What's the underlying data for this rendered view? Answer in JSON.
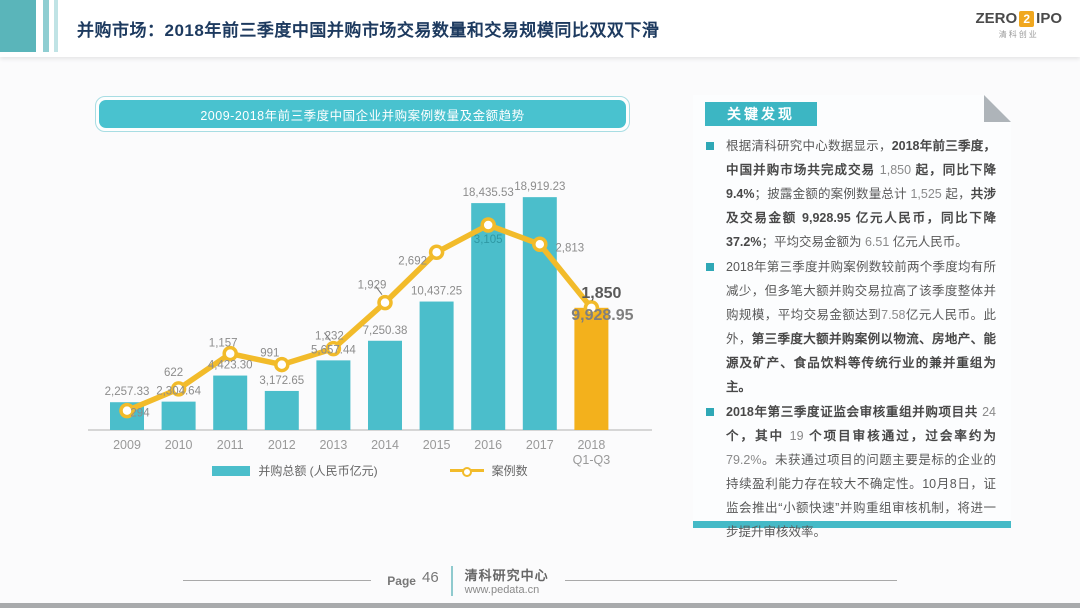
{
  "header": {
    "title": "并购市场：2018年前三季度中国并购市场交易数量和交易规模同比双双下滑",
    "logo": {
      "part1": "ZERO",
      "part2": "2",
      "part3": "IPO",
      "subtitle": "清科创业"
    }
  },
  "chart_data": {
    "type": "combo",
    "title": "2009-2018年前三季度中国企业并购案例数量及金额趋势",
    "categories": [
      "2009",
      "2010",
      "2011",
      "2012",
      "2013",
      "2014",
      "2015",
      "2016",
      "2017",
      "2018"
    ],
    "last_category_sublabel": "Q1-Q3",
    "series": [
      {
        "name": "并购总额 (人民币亿元)",
        "type": "bar",
        "values": [
          2257.33,
          2304.64,
          4423.3,
          3172.65,
          5657.44,
          7250.38,
          10437.25,
          18435.53,
          18919.23,
          9928.95
        ],
        "labels": [
          "2,257.33",
          "2,304.64",
          "4,423.30",
          "3,172.65",
          "5,657.44",
          "7,250.38",
          "10,437.25",
          "18,435.53",
          "18,919.23",
          "9,928.95"
        ]
      },
      {
        "name": "案例数",
        "type": "line",
        "values": [
          294,
          622,
          1157,
          991,
          1232,
          1929,
          2692,
          3105,
          2813,
          1850
        ],
        "labels": [
          "294",
          "622",
          "1,157",
          "991",
          "1,232",
          "1,929",
          "2,692",
          "3,105",
          "2,813",
          "1,850"
        ]
      }
    ],
    "highlight_category_index": 9,
    "ylim_bar": [
      0,
      19500
    ],
    "ylim_line": [
      0,
      3300
    ],
    "grid": false,
    "legend_position": "bottom",
    "colors": {
      "bar": "#4bbecb",
      "bar_highlight": "#f3b11c",
      "line": "#f2bb2a",
      "axis": "#c9c9c9",
      "label": "#8c8c8c",
      "label_on_bar": "#2e98a4",
      "highlight_count_label": "#595959",
      "highlight_amount_label": "#7f7f7f",
      "tick": "#999999"
    }
  },
  "panel": {
    "heading": "关键发现",
    "bullets": [
      {
        "runs": [
          {
            "t": "根据清科研究中心数据显示，",
            "s": "n"
          },
          {
            "t": "2018年前三季度，中国并购市场共完成交易 ",
            "s": "b"
          },
          {
            "t": "1,850 ",
            "s": "l"
          },
          {
            "t": "起，同比下降9.4%",
            "s": "b"
          },
          {
            "t": "；披露金额的案例数量总计 ",
            "s": "n"
          },
          {
            "t": "1,525 ",
            "s": "l"
          },
          {
            "t": "起，",
            "s": "n"
          },
          {
            "t": "共涉及交易金额 9,928.95 亿元人民币，同比下降37.2%",
            "s": "b"
          },
          {
            "t": "；平均交易金额为 ",
            "s": "n"
          },
          {
            "t": "6.51 ",
            "s": "l"
          },
          {
            "t": "亿元人民币。",
            "s": "n"
          }
        ]
      },
      {
        "runs": [
          {
            "t": "2018年第三季度并购案例数较前两个季度均有所减少，但多笔大额并购交易拉高了该季度整体并购规模，平均交易金额达到",
            "s": "n"
          },
          {
            "t": "7.58",
            "s": "l"
          },
          {
            "t": "亿元人民币。此外，",
            "s": "n"
          },
          {
            "t": "第三季度大额并购案例以物流、房地产、能源及矿产、食品饮料等传统行业的兼并重组为主。",
            "s": "b"
          }
        ]
      },
      {
        "runs": [
          {
            "t": "2018年第三季度证监会审核重组并购项目共 ",
            "s": "b"
          },
          {
            "t": "24 ",
            "s": "l"
          },
          {
            "t": "个，其中 ",
            "s": "b"
          },
          {
            "t": "19 ",
            "s": "l"
          },
          {
            "t": "个项目审核通过，过会率约为",
            "s": "b"
          },
          {
            "t": "79.2%",
            "s": "l"
          },
          {
            "t": "。未获通过项目的问题主要是标的企业的持续盈利能力存在较大不确定性。10月8日，证监会推出“小额快速”并购重组审核机制，将进一步提升审核效率。",
            "s": "n"
          }
        ]
      }
    ]
  },
  "footer": {
    "page_label": "Page",
    "page_number": "46",
    "org": "清科研究中心",
    "url": "www.pedata.cn"
  }
}
